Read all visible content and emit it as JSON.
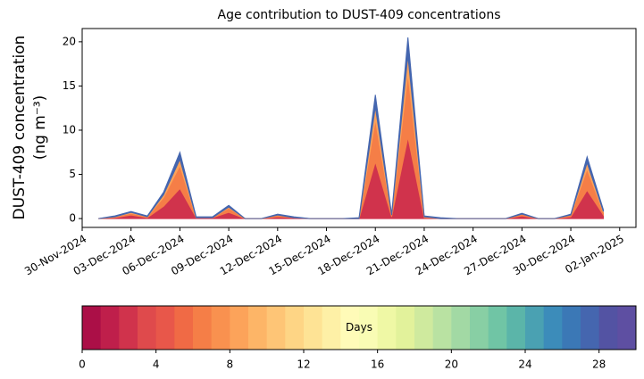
{
  "chart_data": {
    "type": "stacked_area",
    "title": "Age contribution to DUST-409 concentrations",
    "ylabel": [
      "DUST-409 concentration",
      "(ng m⁻³)"
    ],
    "x": [
      "01-Dec-2024",
      "02-Dec-2024",
      "03-Dec-2024",
      "04-Dec-2024",
      "05-Dec-2024",
      "06-Dec-2024",
      "07-Dec-2024",
      "08-Dec-2024",
      "09-Dec-2024",
      "10-Dec-2024",
      "11-Dec-2024",
      "12-Dec-2024",
      "13-Dec-2024",
      "14-Dec-2024",
      "15-Dec-2024",
      "16-Dec-2024",
      "17-Dec-2024",
      "18-Dec-2024",
      "19-Dec-2024",
      "20-Dec-2024",
      "21-Dec-2024",
      "22-Dec-2024",
      "23-Dec-2024",
      "24-Dec-2024",
      "25-Dec-2024",
      "26-Dec-2024",
      "27-Dec-2024",
      "28-Dec-2024",
      "29-Dec-2024",
      "30-Dec-2024",
      "31-Dec-2024",
      "01-Jan-2025"
    ],
    "series": [
      {
        "color": "#d0334c",
        "values": [
          0,
          0.1,
          0.4,
          0.1,
          1.4,
          3.4,
          0.1,
          0.1,
          0.7,
          0,
          0,
          0.2,
          0.1,
          0,
          0,
          0,
          0,
          6.4,
          0.2,
          9.2,
          0.1,
          0,
          0,
          0,
          0,
          0,
          0.3,
          0,
          0,
          0.2,
          3.2,
          0.4
        ]
      },
      {
        "color": "#f57e47",
        "values": [
          0,
          0.1,
          0.2,
          0.1,
          1.0,
          2.6,
          0,
          0,
          0.5,
          0,
          0,
          0.2,
          0,
          0,
          0,
          0,
          0,
          4.8,
          0.2,
          7.2,
          0.1,
          0,
          0,
          0,
          0,
          0,
          0.2,
          0,
          0,
          0.2,
          2.4,
          0.3
        ]
      },
      {
        "color": "#fca35a",
        "values": [
          0,
          0,
          0.1,
          0,
          0.3,
          0.7,
          0,
          0,
          0.1,
          0,
          0,
          0,
          0,
          0,
          0,
          0,
          0,
          1.4,
          0,
          2.0,
          0,
          0,
          0,
          0,
          0,
          0,
          0,
          0,
          0,
          0,
          0.7,
          0.1
        ]
      },
      {
        "color": "#4566af",
        "values": [
          0,
          0.1,
          0.1,
          0.1,
          0.3,
          0.8,
          0.1,
          0.1,
          0.2,
          0,
          0,
          0.1,
          0.1,
          0,
          0,
          0,
          0.1,
          1.4,
          0.1,
          2.1,
          0.1,
          0.1,
          0,
          0,
          0,
          0,
          0.1,
          0,
          0,
          0.1,
          0.7,
          0.2
        ]
      }
    ],
    "xlim": [
      "30-Nov-2024",
      "03-Jan-2025"
    ],
    "xticks": [
      "30-Nov-2024",
      "03-Dec-2024",
      "06-Dec-2024",
      "09-Dec-2024",
      "12-Dec-2024",
      "15-Dec-2024",
      "18-Dec-2024",
      "21-Dec-2024",
      "24-Dec-2024",
      "27-Dec-2024",
      "30-Dec-2024",
      "02-Jan-2025"
    ],
    "ylim": [
      -1,
      21.5
    ],
    "yticks": [
      0,
      5,
      10,
      15,
      20
    ],
    "colorbar": {
      "label": "Days",
      "lim": [
        0,
        30
      ],
      "ticks": [
        0,
        4,
        8,
        12,
        16,
        20,
        24,
        28
      ],
      "colors": [
        "#ab0f47",
        "#bf1f4b",
        "#d0334c",
        "#df4a4c",
        "#e8574a",
        "#f06a45",
        "#f57e47",
        "#f9914f",
        "#fca35a",
        "#fdb567",
        "#fec576",
        "#fed585",
        "#fee395",
        "#fef0a6",
        "#fffbb8",
        "#f9fcb4",
        "#eff8a5",
        "#e2f29b",
        "#cfea9e",
        "#b9e2a2",
        "#a2d9a4",
        "#88cfa4",
        "#70c5a5",
        "#5bb5a9",
        "#4aa1b2",
        "#3c8cba",
        "#3b78b6",
        "#4566af",
        "#5353a3",
        "#5e4fa2"
      ]
    }
  }
}
